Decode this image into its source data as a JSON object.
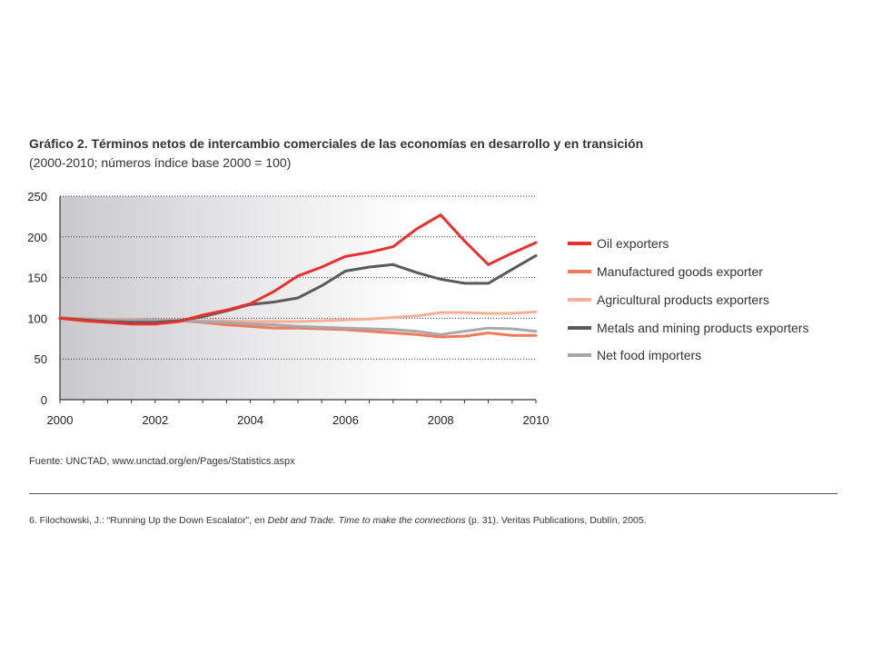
{
  "header": {
    "title": "Gráfico 2. Términos netos de intercambio comerciales de las economías en desarrollo y en transición",
    "subtitle": "(2000-2010; números índice base 2000 = 100)"
  },
  "source": "Fuente: UNCTAD, www.unctad.org/en/Pages/Statistics.aspx",
  "footnote": {
    "prefix": "6. Filochowski, J.: “Running Up the Down Escalator”, en ",
    "italic1": "Debt and Trade. Time to make the connections",
    "middle": " (p. 31). Veritas Publications, Dublín, 2005."
  },
  "chart_data": {
    "type": "line",
    "title": "Gráfico 2. Términos netos de intercambio comerciales de las economías en desarrollo y en transición",
    "subtitle": "(2000-2010; números índice base 2000 = 100)",
    "xlabel": "",
    "ylabel": "",
    "x": [
      2000,
      2000.5,
      2001,
      2001.5,
      2002,
      2002.5,
      2003,
      2003.5,
      2004,
      2004.5,
      2005,
      2005.5,
      2006,
      2006.5,
      2007,
      2007.5,
      2008,
      2008.5,
      2009,
      2009.5,
      2010
    ],
    "xticks": [
      "2000",
      "2002",
      "2004",
      "2006",
      "2008",
      "2010"
    ],
    "xlim": [
      2000,
      2010
    ],
    "ylim": [
      0,
      250
    ],
    "yticks": [
      "0",
      "50",
      "100",
      "150",
      "200",
      "250"
    ],
    "grid": true,
    "legend_position": "right",
    "series": [
      {
        "name": "Oil exporters",
        "color": "#e8302c",
        "values": [
          100,
          97,
          95,
          93,
          93,
          96,
          104,
          110,
          118,
          133,
          152,
          163,
          176,
          181,
          188,
          210,
          227,
          195,
          166,
          180,
          193
        ]
      },
      {
        "name": "Manufactured goods exporter",
        "color": "#f07a5a",
        "values": [
          101,
          99,
          98,
          97,
          97,
          97,
          95,
          92,
          90,
          88,
          88,
          87,
          86,
          84,
          82,
          80,
          77,
          78,
          82,
          79,
          79
        ]
      },
      {
        "name": "Agricultural products exporters",
        "color": "#f5b096",
        "values": [
          100,
          100,
          99,
          99,
          98,
          98,
          97,
          97,
          96,
          96,
          96,
          97,
          98,
          99,
          101,
          103,
          107,
          107,
          106,
          106,
          108
        ]
      },
      {
        "name": "Metals and mining products exporters",
        "color": "#5a5a5a",
        "values": [
          100,
          98,
          96,
          95,
          95,
          97,
          102,
          109,
          117,
          120,
          125,
          140,
          158,
          163,
          166,
          156,
          148,
          143,
          143,
          160,
          177
        ]
      },
      {
        "name": "Net food importers",
        "color": "#a8a8ac",
        "values": [
          100,
          99,
          98,
          98,
          98,
          97,
          96,
          95,
          93,
          92,
          90,
          89,
          88,
          87,
          86,
          84,
          80,
          84,
          88,
          87,
          84
        ]
      }
    ]
  }
}
